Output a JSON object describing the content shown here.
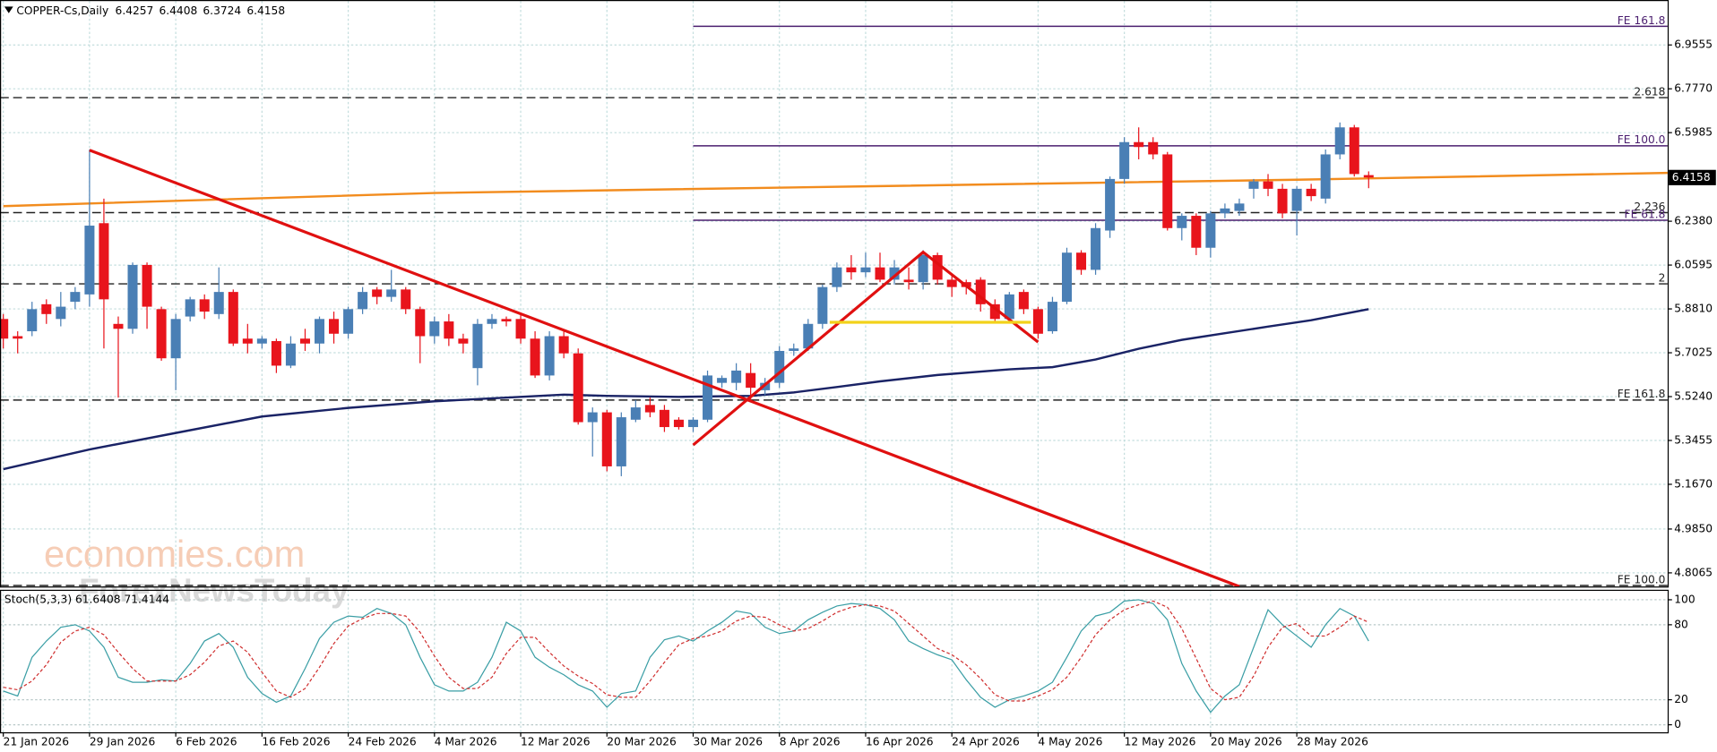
{
  "chart_data": {
    "type": "candlestick",
    "symbol": "COPPER-Cs,Daily",
    "categories": [
      "21 Jan 2026",
      null,
      null,
      null,
      null,
      null,
      "29 Jan 2026",
      null,
      null,
      null,
      null,
      null,
      "6 Feb 2026",
      null,
      null,
      null,
      null,
      null,
      "16 Feb 2026",
      null,
      null,
      null,
      null,
      null,
      "24 Feb 2026",
      null,
      null,
      null,
      null,
      null,
      "4 Mar 2026",
      null,
      null,
      null,
      null,
      null,
      "12 Mar 2026",
      null,
      null,
      null,
      null,
      null,
      "20 Mar 2026",
      null,
      null,
      null,
      null,
      null,
      "30 Mar 2026",
      null,
      null,
      null,
      null,
      null,
      "8 Apr 2026",
      null,
      null,
      null,
      null,
      null,
      "16 Apr 2026",
      null,
      null,
      null,
      null,
      null,
      "24 Apr 2026",
      null,
      null,
      null,
      null,
      null,
      "4 May 2026",
      null,
      null,
      null,
      null,
      null,
      "12 May 2026",
      null,
      null,
      null,
      null,
      null,
      "20 May 2026",
      null,
      null,
      null,
      null,
      null,
      "28 May 2026",
      null,
      null,
      null,
      null,
      null
    ],
    "open": [
      5.84,
      5.77,
      5.79,
      5.9,
      5.84,
      5.91,
      5.94,
      6.23,
      5.82,
      5.8,
      6.06,
      5.88,
      5.68,
      5.85,
      5.92,
      5.86,
      5.95,
      5.76,
      5.74,
      5.75,
      5.65,
      5.76,
      5.74,
      5.84,
      5.78,
      5.88,
      5.96,
      5.93,
      5.96,
      5.88,
      5.77,
      5.83,
      5.76,
      5.64,
      5.82,
      5.84,
      5.84,
      5.76,
      5.61,
      5.77,
      5.7,
      5.42,
      5.46,
      5.24,
      5.43,
      5.49,
      5.47,
      5.43,
      5.4,
      5.43,
      5.58,
      5.58,
      5.62,
      5.55,
      5.58,
      5.71,
      5.72,
      5.82,
      5.97,
      6.05,
      6.03,
      6.05,
      6.0,
      6.0,
      5.99,
      6.1,
      6.0,
      5.99,
      6.0,
      5.9,
      5.84,
      5.95,
      5.88,
      5.79,
      5.91,
      6.11,
      6.04,
      6.2,
      6.41,
      6.56,
      6.56,
      6.51,
      6.21,
      6.26,
      6.13,
      6.27,
      6.28,
      6.37,
      6.4,
      6.37,
      6.28,
      6.37,
      6.33,
      6.51,
      6.62,
      6.4257
    ],
    "high": [
      5.86,
      5.79,
      5.91,
      5.92,
      5.95,
      5.97,
      6.53,
      6.33,
      5.85,
      6.07,
      6.07,
      5.89,
      5.86,
      5.93,
      5.94,
      6.05,
      5.96,
      5.82,
      5.77,
      5.76,
      5.77,
      5.8,
      5.85,
      5.87,
      5.89,
      5.97,
      5.97,
      6.04,
      5.97,
      5.89,
      5.85,
      5.86,
      5.78,
      5.84,
      5.86,
      5.85,
      5.86,
      5.79,
      5.79,
      5.79,
      5.72,
      5.48,
      5.47,
      5.46,
      5.51,
      5.52,
      5.49,
      5.44,
      5.44,
      5.63,
      5.61,
      5.66,
      5.66,
      5.6,
      5.73,
      5.74,
      5.84,
      5.98,
      6.07,
      6.1,
      6.11,
      6.11,
      6.08,
      6.05,
      6.12,
      6.11,
      6.02,
      6.0,
      6.01,
      5.92,
      5.95,
      5.96,
      5.89,
      5.93,
      6.13,
      6.12,
      6.23,
      6.42,
      6.58,
      6.62,
      6.58,
      6.52,
      6.27,
      6.27,
      6.28,
      6.31,
      6.33,
      6.41,
      6.43,
      6.39,
      6.38,
      6.39,
      6.53,
      6.64,
      6.63,
      6.4408
    ],
    "low": [
      5.72,
      5.7,
      5.77,
      5.82,
      5.81,
      5.88,
      5.89,
      5.72,
      5.52,
      5.78,
      5.8,
      5.67,
      5.55,
      5.83,
      5.84,
      5.84,
      5.73,
      5.7,
      5.72,
      5.62,
      5.64,
      5.71,
      5.7,
      5.74,
      5.76,
      5.86,
      5.9,
      5.91,
      5.86,
      5.66,
      5.74,
      5.73,
      5.7,
      5.57,
      5.8,
      5.81,
      5.74,
      5.6,
      5.59,
      5.68,
      5.41,
      5.28,
      5.22,
      5.2,
      5.42,
      5.44,
      5.38,
      5.39,
      5.38,
      5.42,
      5.56,
      5.55,
      5.51,
      5.53,
      5.56,
      5.69,
      5.71,
      5.8,
      5.95,
      6.0,
      6.01,
      5.99,
      5.98,
      5.96,
      5.96,
      5.98,
      5.93,
      5.94,
      5.87,
      5.83,
      5.83,
      5.86,
      5.76,
      5.78,
      5.9,
      6.02,
      6.02,
      6.17,
      6.39,
      6.49,
      6.49,
      6.2,
      6.16,
      6.1,
      6.09,
      6.25,
      6.26,
      6.33,
      6.34,
      6.25,
      6.18,
      6.32,
      6.31,
      6.49,
      6.42,
      6.3724
    ],
    "close": [
      5.76,
      5.76,
      5.88,
      5.86,
      5.89,
      5.95,
      6.22,
      5.92,
      5.8,
      6.06,
      5.89,
      5.68,
      5.84,
      5.92,
      5.87,
      5.95,
      5.74,
      5.74,
      5.76,
      5.65,
      5.74,
      5.74,
      5.84,
      5.78,
      5.88,
      5.95,
      5.93,
      5.96,
      5.88,
      5.77,
      5.83,
      5.76,
      5.74,
      5.82,
      5.84,
      5.83,
      5.76,
      5.61,
      5.77,
      5.7,
      5.42,
      5.46,
      5.24,
      5.44,
      5.48,
      5.46,
      5.4,
      5.4,
      5.43,
      5.61,
      5.6,
      5.63,
      5.56,
      5.58,
      5.71,
      5.72,
      5.82,
      5.97,
      6.05,
      6.03,
      6.05,
      6.0,
      6.05,
      5.99,
      6.1,
      6.0,
      5.97,
      5.97,
      5.9,
      5.84,
      5.94,
      5.88,
      5.78,
      5.91,
      6.11,
      6.04,
      6.21,
      6.41,
      6.56,
      6.54,
      6.51,
      6.21,
      6.26,
      6.13,
      6.27,
      6.29,
      6.31,
      6.4,
      6.37,
      6.27,
      6.37,
      6.34,
      6.51,
      6.62,
      6.43,
      6.4158
    ],
    "up_color": "#4a7fb5",
    "down_color": "#e8141c",
    "ylim": [
      4.7511,
      7.1028
    ],
    "yticks": [
      {
        "value": 4.8065,
        "label": "4.8065"
      },
      {
        "value": 4.985,
        "label": "4.9850"
      },
      {
        "value": 5.167,
        "label": "5.1670"
      },
      5.3455,
      {
        "value": 5.524,
        "label": "5.5240"
      },
      5.7025,
      {
        "value": 5.881,
        "label": "5.8810"
      },
      6.0595,
      {
        "value": 6.238,
        "label": "6.2380"
      },
      6.5985,
      {
        "value": 6.777,
        "label": "6.7770"
      },
      6.9555
    ],
    "grid": true,
    "moving_averages": [
      {
        "color": "#f28c1e",
        "x": [
          0,
          30,
          60,
          90,
          119
        ],
        "values": [
          6.2995,
          6.353,
          6.38,
          6.407,
          6.438
        ]
      },
      {
        "color": "#1a2366",
        "x": [
          0,
          6,
          12,
          18,
          24,
          30,
          36,
          39,
          42,
          47,
          52,
          55,
          58,
          61,
          65,
          70,
          73,
          76,
          79,
          82,
          85,
          88,
          91,
          95
        ],
        "values": [
          5.2285,
          5.309,
          5.376,
          5.443,
          5.478,
          5.505,
          5.523,
          5.532,
          5.527,
          5.523,
          5.527,
          5.541,
          5.563,
          5.586,
          5.612,
          5.635,
          5.644,
          5.675,
          5.719,
          5.755,
          5.782,
          5.809,
          5.835,
          5.88
        ]
      }
    ],
    "trendlines": [
      {
        "color": "#e01010",
        "x": [
          6,
          86
        ],
        "values": [
          6.527,
          4.751
        ]
      },
      {
        "color": "#e01010",
        "x": [
          48,
          64,
          72
        ],
        "values": [
          5.327,
          6.112,
          5.746
        ]
      },
      {
        "color": "#f2d21a",
        "x": [
          57.5,
          71.5
        ],
        "values": [
          5.8265,
          5.8265
        ]
      }
    ],
    "levels": [
      {
        "label": "FE 161.8",
        "value": 7.0314,
        "color": "#4b1f6f",
        "style": "solid",
        "start": 48
      },
      {
        "label": "2.618",
        "value": 6.741,
        "color": "#222222",
        "style": "dashed"
      },
      {
        "label": "FE 100.0",
        "value": 6.545,
        "color": "#4b1f6f",
        "style": "solid",
        "start": 48
      },
      {
        "label": "2.236",
        "value": 6.273,
        "color": "#222222",
        "style": "dashed"
      },
      {
        "label": "FE 61.8",
        "value": 6.242,
        "color": "#4b1f6f",
        "style": "solid",
        "start": 48
      },
      {
        "label": "2",
        "value": 5.983,
        "color": "#222222",
        "style": "dashed"
      },
      {
        "label": "FE 161.8",
        "value": 5.51,
        "color": "#222222",
        "style": "dashed"
      },
      {
        "label": "FE 100.0",
        "value": 4.755,
        "color": "#222222",
        "style": "dashed"
      }
    ],
    "stochastic": {
      "label": "Stoch(5,3,3) 61.6408 71.4144",
      "ylim": [
        -6,
        108
      ],
      "yticks": [
        0,
        20,
        80,
        100
      ],
      "k": {
        "color": "#3a9ea5",
        "values": [
          27,
          23,
          54,
          67,
          78,
          80,
          75,
          62,
          38,
          34,
          34,
          36,
          35,
          49,
          67,
          73,
          62,
          38,
          25,
          18,
          23,
          45,
          69,
          82,
          87,
          86,
          93,
          89,
          80,
          54,
          32,
          27,
          27,
          34,
          54,
          82,
          75,
          54,
          46,
          40,
          32,
          27,
          14,
          25,
          27,
          54,
          68,
          71,
          67,
          75,
          82,
          91,
          89,
          78,
          73,
          75,
          84,
          90,
          95,
          97,
          96,
          93,
          84,
          67,
          61,
          56,
          52,
          36,
          22,
          14,
          20,
          23,
          27,
          34,
          54,
          75,
          87,
          90,
          99,
          100,
          97,
          84,
          49,
          27,
          10,
          23,
          32,
          62,
          92,
          80,
          71,
          62,
          80,
          93,
          87,
          67
        ]
      },
      "d": {
        "color": "#d03030",
        "values": [
          30,
          28,
          35,
          48,
          66,
          75,
          78,
          72,
          58,
          45,
          35,
          35,
          35,
          40,
          50,
          63,
          67,
          58,
          42,
          27,
          22,
          29,
          46,
          65,
          79,
          85,
          89,
          89,
          87,
          74,
          55,
          38,
          29,
          29,
          38,
          57,
          70,
          70,
          58,
          47,
          39,
          33,
          24,
          22,
          22,
          35,
          50,
          64,
          69,
          71,
          75,
          83,
          87,
          86,
          80,
          75,
          77,
          83,
          90,
          94,
          96,
          95,
          91,
          81,
          71,
          61,
          56,
          48,
          37,
          24,
          19,
          19,
          23,
          28,
          38,
          54,
          72,
          84,
          92,
          96,
          99,
          94,
          77,
          53,
          29,
          20,
          22,
          39,
          62,
          78,
          81,
          71,
          71,
          78,
          87,
          82
        ]
      }
    },
    "watermark": [
      "economies.com",
      "ForexNewsToday"
    ]
  }
}
